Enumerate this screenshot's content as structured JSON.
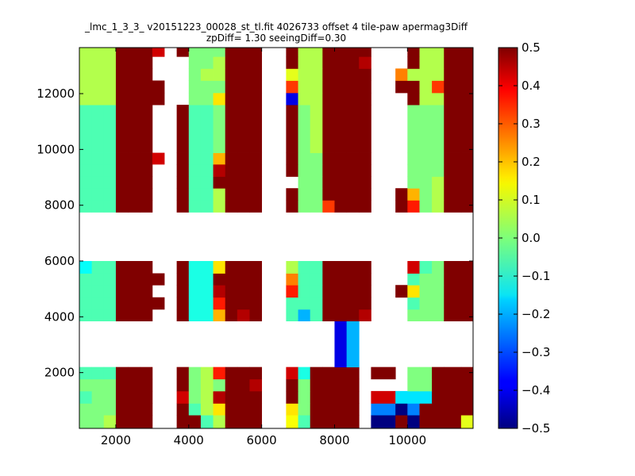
{
  "chart_data": {
    "type": "heatmap",
    "title_line1": "_lmc_1_3_3_ v20151223_00028_st_tl.fit 4026733 offset 4 tile-paw apermag3Diff",
    "title_line2": "zpDiff= 1.30 seeingDiff=0.30",
    "xlim": [
      1000,
      11800
    ],
    "ylim": [
      0,
      13650
    ],
    "x_ticks": [
      2000,
      4000,
      6000,
      8000,
      10000
    ],
    "y_ticks": [
      2000,
      4000,
      6000,
      8000,
      10000,
      12000
    ],
    "colorbar": {
      "colormap": "jet",
      "vmin": -0.5,
      "vmax": 0.5,
      "ticks": [
        "0.5",
        "0.4",
        "0.3",
        "0.2",
        "0.1",
        "0.0",
        "−0.1",
        "−0.2",
        "−0.3",
        "−0.4",
        "−0.5"
      ],
      "tick_values": [
        0.5,
        0.4,
        0.3,
        0.2,
        0.1,
        0.0,
        -0.1,
        -0.2,
        -0.3,
        -0.4,
        -0.5
      ]
    },
    "grid": false,
    "x_edges": [
      1000,
      1340,
      1670,
      2000,
      2330,
      2670,
      3000,
      3330,
      3670,
      4000,
      4330,
      4670,
      5000,
      5330,
      5670,
      6000,
      6670,
      7000,
      7330,
      7670,
      8000,
      8330,
      8670,
      9000,
      9670,
      10000,
      10330,
      10670,
      11000,
      11470,
      11800
    ],
    "y_edges": [
      0,
      480,
      900,
      1340,
      1770,
      2200,
      3850,
      4270,
      4700,
      5140,
      5560,
      6000,
      7750,
      8180,
      8610,
      9030,
      9470,
      9880,
      11600,
      12030,
      12470,
      12900,
      13330,
      13650
    ],
    "NaN_note": "null = masked (white) cell",
    "values": [
      [
        0.0,
        0.0,
        0.05,
        0.5,
        0.5,
        0.5,
        null,
        null,
        0.5,
        0.5,
        -0.05,
        0.05,
        0.5,
        0.5,
        0.5,
        null,
        0.12,
        -0.05,
        0.5,
        0.5,
        0.5,
        0.5,
        null,
        -0.5,
        0.5,
        -0.5,
        0.5,
        0.5,
        0.5,
        0.1
      ],
      [
        0.0,
        0.0,
        0.0,
        0.5,
        0.5,
        0.5,
        null,
        null,
        0.5,
        -0.05,
        0.05,
        0.15,
        0.5,
        0.5,
        0.5,
        null,
        0.15,
        0.0,
        0.5,
        0.5,
        0.5,
        0.5,
        null,
        -0.25,
        -0.5,
        -0.25,
        0.5,
        0.5,
        0.5,
        0.5
      ],
      [
        -0.05,
        0.0,
        0.0,
        0.5,
        0.5,
        0.5,
        null,
        null,
        0.42,
        0.0,
        0.05,
        0.45,
        0.5,
        0.5,
        0.5,
        null,
        0.5,
        0.0,
        0.5,
        0.5,
        0.5,
        0.5,
        null,
        0.42,
        -0.15,
        -0.15,
        -0.15,
        0.5,
        0.5,
        0.5
      ],
      [
        0.0,
        0.0,
        0.0,
        0.5,
        0.5,
        0.5,
        null,
        null,
        0.5,
        0.0,
        0.05,
        0.0,
        0.5,
        0.5,
        0.45,
        null,
        0.5,
        0.0,
        0.5,
        0.5,
        0.5,
        0.5,
        null,
        null,
        null,
        0.0,
        0.0,
        0.5,
        0.5,
        0.5
      ],
      [
        -0.05,
        -0.05,
        -0.05,
        0.5,
        0.5,
        0.5,
        null,
        null,
        0.5,
        0.0,
        0.05,
        0.35,
        0.5,
        0.5,
        0.5,
        null,
        0.42,
        -0.1,
        0.5,
        0.5,
        0.5,
        0.5,
        null,
        0.5,
        null,
        0.0,
        0.0,
        0.5,
        0.5,
        0.5
      ],
      [
        null,
        null,
        null,
        null,
        null,
        null,
        null,
        null,
        null,
        null,
        null,
        null,
        null,
        null,
        null,
        null,
        null,
        null,
        null,
        null,
        -0.4,
        -0.2,
        null,
        null,
        null,
        null,
        null,
        null,
        null,
        null
      ],
      [
        -0.05,
        -0.05,
        -0.05,
        0.5,
        0.5,
        0.5,
        null,
        null,
        0.5,
        -0.1,
        -0.1,
        0.2,
        0.5,
        0.45,
        0.5,
        null,
        -0.05,
        -0.2,
        -0.05,
        0.5,
        0.5,
        0.5,
        0.45,
        null,
        null,
        0.0,
        0.0,
        0.0,
        0.5,
        0.5
      ],
      [
        -0.05,
        -0.05,
        -0.05,
        0.5,
        0.5,
        0.5,
        0.5,
        null,
        0.5,
        -0.1,
        -0.1,
        0.35,
        0.5,
        0.5,
        0.5,
        null,
        -0.05,
        -0.05,
        -0.05,
        0.5,
        0.5,
        0.5,
        0.5,
        null,
        null,
        -0.05,
        0.0,
        0.0,
        0.5,
        0.5
      ],
      [
        -0.05,
        -0.05,
        -0.05,
        0.5,
        0.5,
        0.5,
        null,
        null,
        0.5,
        -0.1,
        -0.1,
        0.45,
        0.5,
        0.5,
        0.5,
        null,
        0.35,
        -0.05,
        -0.05,
        0.5,
        0.5,
        0.5,
        0.5,
        null,
        0.5,
        0.15,
        0.0,
        0.0,
        0.5,
        0.5
      ],
      [
        -0.05,
        -0.05,
        -0.05,
        0.5,
        0.5,
        0.5,
        0.5,
        null,
        0.5,
        -0.1,
        -0.1,
        0.5,
        0.5,
        0.5,
        0.5,
        null,
        0.25,
        -0.05,
        -0.05,
        0.5,
        0.5,
        0.5,
        0.5,
        null,
        null,
        -0.05,
        0.0,
        0.0,
        0.5,
        0.5
      ],
      [
        -0.12,
        -0.05,
        -0.05,
        0.5,
        0.5,
        0.5,
        null,
        null,
        0.5,
        -0.1,
        -0.1,
        0.15,
        0.5,
        0.5,
        0.5,
        null,
        0.05,
        -0.05,
        -0.05,
        0.5,
        0.5,
        0.5,
        0.5,
        null,
        null,
        0.42,
        -0.05,
        0.0,
        0.5,
        0.5
      ],
      [
        null,
        null,
        null,
        null,
        null,
        null,
        null,
        null,
        null,
        null,
        null,
        null,
        null,
        null,
        null,
        null,
        null,
        null,
        null,
        null,
        null,
        null,
        null,
        null,
        null,
        null,
        null,
        null,
        null,
        null
      ],
      [
        -0.05,
        -0.05,
        -0.05,
        0.5,
        0.5,
        0.5,
        null,
        null,
        0.5,
        -0.05,
        -0.05,
        0.05,
        0.5,
        0.5,
        0.5,
        null,
        0.5,
        0.0,
        0.0,
        0.32,
        0.5,
        0.5,
        0.5,
        null,
        0.5,
        0.35,
        0.0,
        0.05,
        0.5,
        0.5
      ],
      [
        -0.05,
        -0.05,
        -0.05,
        0.5,
        0.5,
        0.5,
        null,
        null,
        0.5,
        -0.05,
        -0.05,
        0.05,
        0.5,
        0.5,
        0.5,
        null,
        0.5,
        0.0,
        0.0,
        0.5,
        0.5,
        0.5,
        0.5,
        null,
        0.5,
        0.2,
        0.0,
        0.05,
        0.5,
        0.5
      ],
      [
        -0.05,
        -0.05,
        -0.05,
        0.5,
        0.5,
        0.5,
        null,
        null,
        0.5,
        -0.05,
        -0.05,
        0.5,
        0.5,
        0.5,
        0.5,
        null,
        null,
        0.0,
        0.0,
        0.5,
        0.5,
        0.5,
        0.5,
        null,
        null,
        0.0,
        0.0,
        0.05,
        0.5,
        0.5
      ],
      [
        -0.05,
        -0.05,
        -0.05,
        0.5,
        0.5,
        0.5,
        null,
        null,
        0.5,
        -0.05,
        -0.05,
        0.45,
        0.5,
        0.5,
        0.5,
        null,
        0.5,
        0.0,
        0.0,
        0.5,
        0.5,
        0.5,
        0.5,
        null,
        null,
        0.0,
        0.0,
        0.0,
        0.5,
        0.5
      ],
      [
        -0.05,
        -0.05,
        -0.05,
        0.5,
        0.5,
        0.5,
        0.42,
        null,
        0.5,
        -0.05,
        -0.05,
        0.2,
        0.5,
        0.5,
        0.5,
        null,
        0.5,
        0.0,
        0.0,
        0.5,
        0.5,
        0.5,
        0.5,
        null,
        null,
        0.0,
        0.0,
        0.0,
        0.5,
        0.5
      ],
      [
        -0.05,
        -0.05,
        -0.05,
        0.5,
        0.5,
        0.5,
        null,
        null,
        0.5,
        -0.05,
        -0.05,
        0.0,
        0.5,
        0.5,
        0.5,
        null,
        0.5,
        0.0,
        0.05,
        0.5,
        0.5,
        0.5,
        0.5,
        null,
        null,
        0.0,
        0.0,
        0.0,
        0.5,
        0.5
      ],
      [
        0.05,
        0.05,
        0.05,
        0.5,
        0.5,
        0.5,
        0.5,
        null,
        null,
        0.0,
        0.0,
        0.15,
        0.5,
        0.5,
        0.5,
        null,
        -0.4,
        0.05,
        0.05,
        0.5,
        0.5,
        0.5,
        0.5,
        null,
        null,
        0.5,
        0.05,
        0.05,
        0.5,
        0.5
      ],
      [
        0.05,
        0.05,
        0.05,
        0.5,
        0.5,
        0.5,
        0.5,
        null,
        null,
        0.0,
        0.0,
        0.0,
        0.5,
        0.5,
        0.5,
        null,
        0.32,
        0.05,
        0.05,
        0.5,
        0.5,
        0.5,
        0.5,
        null,
        0.5,
        0.5,
        0.05,
        0.32,
        0.5,
        0.5
      ],
      [
        0.05,
        0.05,
        0.05,
        0.5,
        0.5,
        0.5,
        null,
        null,
        null,
        0.0,
        0.05,
        0.05,
        0.5,
        0.5,
        0.5,
        null,
        0.1,
        0.05,
        0.05,
        0.5,
        0.5,
        0.5,
        0.5,
        null,
        0.25,
        0.05,
        0.05,
        0.05,
        0.5,
        0.5
      ],
      [
        0.05,
        0.05,
        0.05,
        0.5,
        0.5,
        0.5,
        null,
        null,
        null,
        0.0,
        0.0,
        0.05,
        0.5,
        0.5,
        0.5,
        null,
        0.5,
        0.05,
        0.05,
        0.5,
        0.5,
        0.5,
        0.45,
        null,
        null,
        0.5,
        0.05,
        0.05,
        0.5,
        0.5
      ],
      [
        0.05,
        0.05,
        0.05,
        0.5,
        0.5,
        0.5,
        0.42,
        null,
        0.5,
        0.0,
        0.0,
        0.0,
        0.5,
        0.5,
        0.5,
        null,
        0.5,
        0.05,
        0.05,
        0.5,
        0.5,
        0.5,
        0.5,
        null,
        null,
        0.5,
        0.05,
        0.05,
        0.5,
        0.5
      ]
    ]
  }
}
